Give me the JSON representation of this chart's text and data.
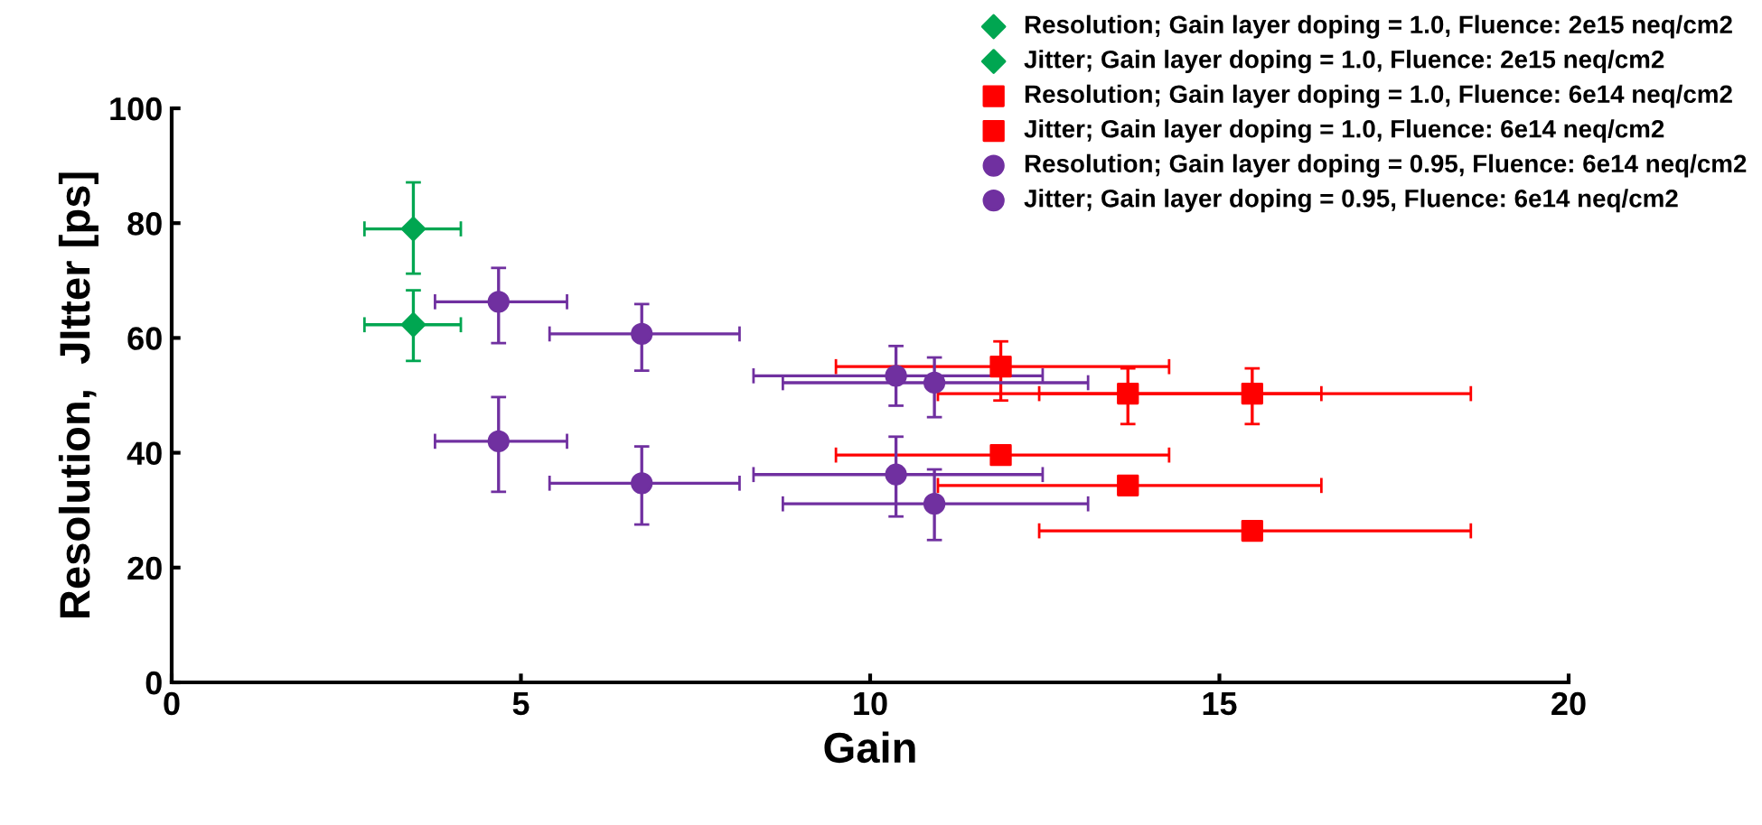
{
  "chart_data": {
    "type": "scatter",
    "xlabel": "Gain",
    "ylabel": "Resolution,  JItter [ps]",
    "xlim": [
      0,
      20
    ],
    "xticks": [
      0,
      5,
      10,
      15,
      20
    ],
    "ylim": [
      0,
      100
    ],
    "yticks": [
      0,
      20,
      40,
      60,
      80,
      100
    ],
    "grid": false,
    "legend": "top right",
    "series": [
      {
        "name": "Resolution; Gain layer doping = 1.0, Fluence: 2e15 neq/cm2",
        "color": "#00a651",
        "marker": "diamond",
        "x": [
          3.46
        ],
        "values": [
          79.0
        ],
        "errors": [
          [
            71.2,
            87.1
          ]
        ],
        "xerrors": [
          [
            2.76,
            4.14
          ]
        ]
      },
      {
        "name": "Jitter; Gain layer doping = 1.0, Fluence: 2e15 neq/cm2",
        "color": "#00a651",
        "marker": "diamond",
        "x": [
          3.46
        ],
        "values": [
          62.3
        ],
        "errors": [
          [
            56.0,
            68.3
          ]
        ],
        "xerrors": [
          [
            2.76,
            4.14
          ]
        ]
      },
      {
        "name": "Resolution; Gain layer doping = 1.0, Fluence: 6e14 neq/cm2",
        "color": "#ff0000",
        "marker": "square",
        "x": [
          11.87,
          13.69,
          15.47
        ],
        "values": [
          55.0,
          50.3,
          50.3
        ],
        "errors": [
          [
            49.1,
            59.4
          ],
          [
            45.0,
            54.7
          ],
          [
            45.0,
            54.7
          ]
        ],
        "xerrors": [
          [
            9.51,
            14.28
          ],
          [
            10.97,
            16.46
          ],
          [
            12.42,
            18.6
          ]
        ]
      },
      {
        "name": "Jitter; Gain layer doping = 1.0, Fluence: 6e14 neq/cm2",
        "color": "#ff0000",
        "marker": "square",
        "x": [
          11.87,
          13.69,
          15.47
        ],
        "values": [
          39.6,
          34.3,
          26.4
        ],
        "xerrors": [
          [
            9.51,
            14.28
          ],
          [
            10.97,
            16.46
          ],
          [
            12.42,
            18.6
          ]
        ]
      },
      {
        "name": "Resolution; Gain layer doping = 0.95, Fluence: 6e14 neq/cm2",
        "color": "#7030a0",
        "marker": "circle",
        "x": [
          4.68,
          6.73,
          10.37,
          10.92
        ],
        "values": [
          66.3,
          60.7,
          53.4,
          52.2
        ],
        "errors": [
          [
            59.1,
            72.2
          ],
          [
            54.3,
            65.9
          ],
          [
            48.2,
            58.6
          ],
          [
            46.2,
            56.6
          ]
        ],
        "xerrors": [
          [
            3.77,
            5.66
          ],
          [
            5.41,
            8.13
          ],
          [
            8.33,
            12.47
          ],
          [
            8.75,
            13.12
          ]
        ]
      },
      {
        "name": "Jitter; Gain layer doping = 0.95, Fluence: 6e14 neq/cm2",
        "color": "#7030a0",
        "marker": "circle",
        "x": [
          4.68,
          6.73,
          10.37,
          10.92
        ],
        "values": [
          42.0,
          34.7,
          36.2,
          31.1
        ],
        "errors": [
          [
            33.2,
            49.7
          ],
          [
            27.5,
            41.1
          ],
          [
            28.9,
            42.8
          ],
          [
            24.8,
            37.1
          ]
        ],
        "xerrors": [
          [
            3.77,
            5.66
          ],
          [
            5.41,
            8.13
          ],
          [
            8.33,
            12.47
          ],
          [
            8.75,
            13.12
          ]
        ]
      }
    ]
  }
}
